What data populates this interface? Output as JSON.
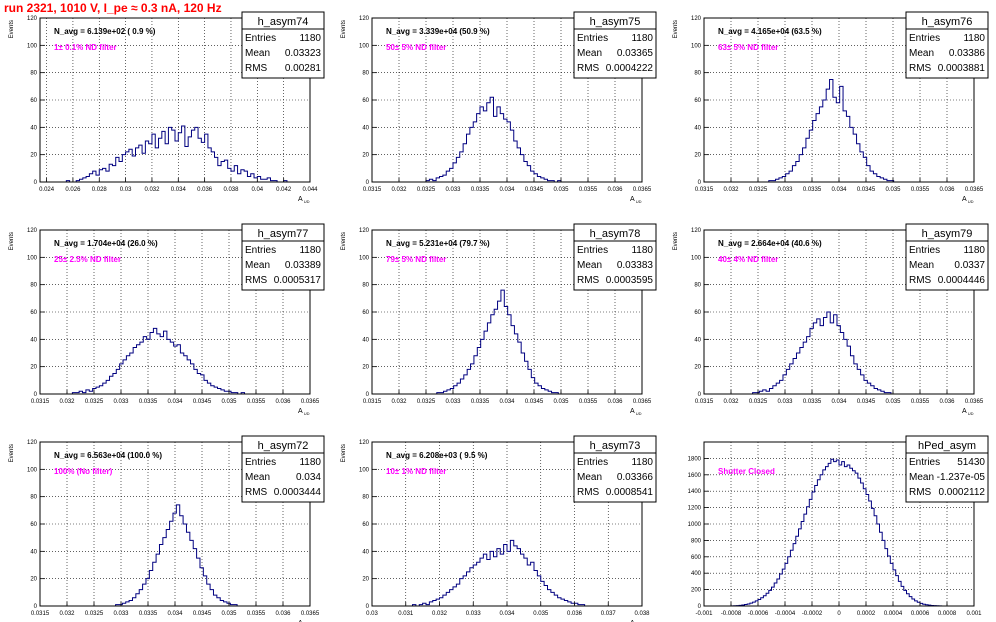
{
  "page_title": "run 2321,  1010 V, I_pe ≈ 0.3 nA, 120 Hz",
  "chart_data": [
    {
      "id": "h_asym74",
      "type": "histogram",
      "title": "h_asym74",
      "stats": {
        "Entries": "1180",
        "Mean": "0.03323",
        "RMS": "0.00281"
      },
      "navg": "N_avg = 6.139e+02 ( 0.9 %)",
      "filter": "1± 0.1% ND filter",
      "ylabel": "Events",
      "xlabel": "A_UD",
      "xlim": [
        0.0235,
        0.044
      ],
      "ylim": [
        0,
        120
      ],
      "xticks": [
        {
          "v": 0.024,
          "l": "0.024"
        },
        {
          "v": 0.026,
          "l": "0.026"
        },
        {
          "v": 0.028,
          "l": "0.028"
        },
        {
          "v": 0.03,
          "l": "0.03"
        },
        {
          "v": 0.032,
          "l": "0.032"
        },
        {
          "v": 0.034,
          "l": "0.034"
        },
        {
          "v": 0.036,
          "l": "0.036"
        },
        {
          "v": 0.038,
          "l": "0.038"
        },
        {
          "v": 0.04,
          "l": "0.04"
        },
        {
          "v": 0.042,
          "l": "0.042"
        },
        {
          "v": 0.044,
          "l": "0.044"
        }
      ],
      "yticks": [
        0,
        20,
        40,
        60,
        80,
        100,
        120
      ],
      "bin_start": 0.0255,
      "bin_width": 0.00025,
      "counts": [
        1,
        0,
        0,
        1,
        2,
        3,
        4,
        6,
        8,
        5,
        9,
        10,
        8,
        13,
        12,
        18,
        15,
        20,
        22,
        24,
        19,
        25,
        27,
        21,
        30,
        28,
        35,
        25,
        32,
        37,
        28,
        40,
        38,
        30,
        36,
        41,
        26,
        33,
        38,
        40,
        32,
        29,
        35,
        25,
        22,
        18,
        12,
        15,
        16,
        10,
        8,
        12,
        6,
        9,
        8,
        4,
        6,
        3,
        4,
        2,
        2,
        3,
        1,
        1,
        0,
        0,
        1
      ]
    },
    {
      "id": "h_asym75",
      "type": "histogram",
      "title": "h_asym75",
      "stats": {
        "Entries": "1180",
        "Mean": "0.03365",
        "RMS": "0.0004222"
      },
      "navg": "N_avg = 3.339e+04 (50.9 %)",
      "filter": "50± 5% ND filter",
      "ylabel": "Events",
      "xlabel": "A_UD",
      "xlim": [
        0.0315,
        0.0365
      ],
      "ylim": [
        0,
        120
      ],
      "xticks": [
        {
          "v": 0.0315,
          "l": "0.0315"
        },
        {
          "v": 0.032,
          "l": "0.032"
        },
        {
          "v": 0.0325,
          "l": "0.0325"
        },
        {
          "v": 0.033,
          "l": "0.033"
        },
        {
          "v": 0.0335,
          "l": "0.0335"
        },
        {
          "v": 0.034,
          "l": "0.034"
        },
        {
          "v": 0.0345,
          "l": "0.0345"
        },
        {
          "v": 0.035,
          "l": "0.035"
        },
        {
          "v": 0.0355,
          "l": "0.0355"
        },
        {
          "v": 0.036,
          "l": "0.036"
        },
        {
          "v": 0.0365,
          "l": "0.0365"
        }
      ],
      "yticks": [
        0,
        20,
        40,
        60,
        80,
        100,
        120
      ],
      "bin_start": 0.0325,
      "bin_width": 6.25e-05,
      "counts": [
        1,
        2,
        1,
        3,
        4,
        5,
        8,
        10,
        14,
        18,
        22,
        28,
        35,
        40,
        44,
        50,
        55,
        52,
        58,
        62,
        48,
        55,
        50,
        46,
        44,
        38,
        30,
        25,
        20,
        15,
        12,
        8,
        6,
        4,
        3,
        2,
        1,
        1,
        0,
        1
      ]
    },
    {
      "id": "h_asym76",
      "type": "histogram",
      "title": "h_asym76",
      "stats": {
        "Entries": "1180",
        "Mean": "0.03386",
        "RMS": "0.0003881"
      },
      "navg": "N_avg = 4.165e+04 (63.5 %)",
      "filter": "63± 5% ND filter",
      "ylabel": "Events",
      "xlabel": "A_UD",
      "xlim": [
        0.0315,
        0.0365
      ],
      "ylim": [
        0,
        120
      ],
      "xticks": [
        {
          "v": 0.0315,
          "l": "0.0315"
        },
        {
          "v": 0.032,
          "l": "0.032"
        },
        {
          "v": 0.0325,
          "l": "0.0325"
        },
        {
          "v": 0.033,
          "l": "0.033"
        },
        {
          "v": 0.0335,
          "l": "0.0335"
        },
        {
          "v": 0.034,
          "l": "0.034"
        },
        {
          "v": 0.0345,
          "l": "0.0345"
        },
        {
          "v": 0.035,
          "l": "0.035"
        },
        {
          "v": 0.0355,
          "l": "0.0355"
        },
        {
          "v": 0.036,
          "l": "0.036"
        },
        {
          "v": 0.0365,
          "l": "0.0365"
        }
      ],
      "yticks": [
        0,
        20,
        40,
        60,
        80,
        100,
        120
      ],
      "bin_start": 0.0327,
      "bin_width": 6.25e-05,
      "counts": [
        1,
        1,
        2,
        3,
        4,
        6,
        8,
        12,
        15,
        20,
        25,
        32,
        38,
        45,
        50,
        55,
        60,
        68,
        75,
        62,
        58,
        70,
        52,
        48,
        40,
        35,
        28,
        22,
        18,
        12,
        8,
        6,
        4,
        3,
        2,
        1,
        1
      ]
    },
    {
      "id": "h_asym77",
      "type": "histogram",
      "title": "h_asym77",
      "stats": {
        "Entries": "1180",
        "Mean": "0.03389",
        "RMS": "0.0005317"
      },
      "navg": "N_avg = 1.704e+04 (26.0 %)",
      "filter": "25± 2.5% ND filter",
      "ylabel": "Events",
      "xlabel": "A_UD",
      "xlim": [
        0.0315,
        0.0365
      ],
      "ylim": [
        0,
        120
      ],
      "xticks": [
        {
          "v": 0.0315,
          "l": "0.0315"
        },
        {
          "v": 0.032,
          "l": "0.032"
        },
        {
          "v": 0.0325,
          "l": "0.0325"
        },
        {
          "v": 0.033,
          "l": "0.033"
        },
        {
          "v": 0.0335,
          "l": "0.0335"
        },
        {
          "v": 0.034,
          "l": "0.034"
        },
        {
          "v": 0.0345,
          "l": "0.0345"
        },
        {
          "v": 0.035,
          "l": "0.035"
        },
        {
          "v": 0.0355,
          "l": "0.0355"
        },
        {
          "v": 0.036,
          "l": "0.036"
        },
        {
          "v": 0.0365,
          "l": "0.0365"
        }
      ],
      "yticks": [
        0,
        20,
        40,
        60,
        80,
        100,
        120
      ],
      "bin_start": 0.0321,
      "bin_width": 6.25e-05,
      "counts": [
        1,
        1,
        2,
        1,
        3,
        2,
        4,
        5,
        6,
        8,
        10,
        13,
        15,
        18,
        22,
        25,
        28,
        30,
        34,
        36,
        38,
        42,
        40,
        45,
        48,
        44,
        42,
        46,
        40,
        38,
        35,
        36,
        30,
        28,
        25,
        22,
        18,
        15,
        14,
        10,
        8,
        6,
        5,
        4,
        3,
        2,
        2,
        1,
        1,
        0,
        1
      ]
    },
    {
      "id": "h_asym78",
      "type": "histogram",
      "title": "h_asym78",
      "stats": {
        "Entries": "1180",
        "Mean": "0.03383",
        "RMS": "0.0003595"
      },
      "navg": "N_avg = 5.231e+04 (79.7 %)",
      "filter": "79± 5% ND filter",
      "ylabel": "Events",
      "xlabel": "A_UD",
      "xlim": [
        0.0315,
        0.0365
      ],
      "ylim": [
        0,
        120
      ],
      "xticks": [
        {
          "v": 0.0315,
          "l": "0.0315"
        },
        {
          "v": 0.032,
          "l": "0.032"
        },
        {
          "v": 0.0325,
          "l": "0.0325"
        },
        {
          "v": 0.033,
          "l": "0.033"
        },
        {
          "v": 0.0335,
          "l": "0.0335"
        },
        {
          "v": 0.034,
          "l": "0.034"
        },
        {
          "v": 0.0345,
          "l": "0.0345"
        },
        {
          "v": 0.035,
          "l": "0.035"
        },
        {
          "v": 0.0355,
          "l": "0.0355"
        },
        {
          "v": 0.036,
          "l": "0.036"
        },
        {
          "v": 0.0365,
          "l": "0.0365"
        }
      ],
      "yticks": [
        0,
        20,
        40,
        60,
        80,
        100,
        120
      ],
      "bin_start": 0.0327,
      "bin_width": 6.25e-05,
      "counts": [
        1,
        1,
        2,
        3,
        4,
        6,
        8,
        11,
        14,
        18,
        22,
        28,
        34,
        40,
        46,
        52,
        58,
        62,
        68,
        76,
        64,
        58,
        50,
        44,
        38,
        30,
        24,
        18,
        12,
        8,
        6,
        4,
        3,
        2,
        1,
        1
      ]
    },
    {
      "id": "h_asym79",
      "type": "histogram",
      "title": "h_asym79",
      "stats": {
        "Entries": "1180",
        "Mean": "0.0337",
        "RMS": "0.0004446"
      },
      "navg": "N_avg = 2.664e+04 (40.6 %)",
      "filter": "40± 4% ND filter",
      "ylabel": "Events",
      "xlabel": "A_UD",
      "xlim": [
        0.0315,
        0.0365
      ],
      "ylim": [
        0,
        120
      ],
      "xticks": [
        {
          "v": 0.0315,
          "l": "0.0315"
        },
        {
          "v": 0.032,
          "l": "0.032"
        },
        {
          "v": 0.0325,
          "l": "0.0325"
        },
        {
          "v": 0.033,
          "l": "0.033"
        },
        {
          "v": 0.0335,
          "l": "0.0335"
        },
        {
          "v": 0.034,
          "l": "0.034"
        },
        {
          "v": 0.0345,
          "l": "0.0345"
        },
        {
          "v": 0.035,
          "l": "0.035"
        },
        {
          "v": 0.0355,
          "l": "0.0355"
        },
        {
          "v": 0.036,
          "l": "0.036"
        },
        {
          "v": 0.0365,
          "l": "0.0365"
        }
      ],
      "yticks": [
        0,
        20,
        40,
        60,
        80,
        100,
        120
      ],
      "bin_start": 0.0324,
      "bin_width": 6.25e-05,
      "counts": [
        1,
        1,
        2,
        3,
        2,
        4,
        6,
        8,
        10,
        14,
        18,
        22,
        26,
        30,
        34,
        38,
        42,
        48,
        52,
        55,
        50,
        56,
        60,
        52,
        58,
        50,
        45,
        40,
        35,
        28,
        22,
        18,
        14,
        10,
        8,
        6,
        4,
        3,
        2,
        1,
        1
      ]
    },
    {
      "id": "h_asym72",
      "type": "histogram",
      "title": "h_asym72",
      "stats": {
        "Entries": "1180",
        "Mean": "0.034",
        "RMS": "0.0003444"
      },
      "navg": "N_avg = 6.563e+04 (100.0 %)",
      "filter": "100% (No filter)",
      "ylabel": "Events",
      "xlabel": "A_UD",
      "xlim": [
        0.0315,
        0.0365
      ],
      "ylim": [
        0,
        120
      ],
      "xticks": [
        {
          "v": 0.0315,
          "l": "0.0315"
        },
        {
          "v": 0.032,
          "l": "0.032"
        },
        {
          "v": 0.0325,
          "l": "0.0325"
        },
        {
          "v": 0.033,
          "l": "0.033"
        },
        {
          "v": 0.0335,
          "l": "0.0335"
        },
        {
          "v": 0.034,
          "l": "0.034"
        },
        {
          "v": 0.0345,
          "l": "0.0345"
        },
        {
          "v": 0.035,
          "l": "0.035"
        },
        {
          "v": 0.0355,
          "l": "0.0355"
        },
        {
          "v": 0.036,
          "l": "0.036"
        },
        {
          "v": 0.0365,
          "l": "0.0365"
        }
      ],
      "yticks": [
        0,
        20,
        40,
        60,
        80,
        100,
        120
      ],
      "bin_start": 0.0329,
      "bin_width": 6.25e-05,
      "counts": [
        1,
        1,
        2,
        3,
        4,
        6,
        9,
        12,
        16,
        20,
        26,
        32,
        38,
        45,
        50,
        56,
        62,
        68,
        74,
        66,
        60,
        54,
        48,
        42,
        35,
        28,
        22,
        16,
        12,
        8,
        6,
        4,
        3,
        2,
        1,
        1
      ]
    },
    {
      "id": "h_asym73",
      "type": "histogram",
      "title": "h_asym73",
      "stats": {
        "Entries": "1180",
        "Mean": "0.03366",
        "RMS": "0.0008541"
      },
      "navg": "N_avg = 6.208e+03 ( 9.5 %)",
      "filter": "10± 1% ND filter",
      "ylabel": "Events",
      "xlabel": "A_UD",
      "xlim": [
        0.03,
        0.038
      ],
      "ylim": [
        0,
        120
      ],
      "xticks": [
        {
          "v": 0.03,
          "l": "0.03"
        },
        {
          "v": 0.031,
          "l": "0.031"
        },
        {
          "v": 0.032,
          "l": "0.032"
        },
        {
          "v": 0.033,
          "l": "0.033"
        },
        {
          "v": 0.034,
          "l": "0.034"
        },
        {
          "v": 0.035,
          "l": "0.035"
        },
        {
          "v": 0.036,
          "l": "0.036"
        },
        {
          "v": 0.037,
          "l": "0.037"
        },
        {
          "v": 0.038,
          "l": "0.038"
        }
      ],
      "yticks": [
        0,
        20,
        40,
        60,
        80,
        100,
        120
      ],
      "bin_start": 0.0312,
      "bin_width": 0.0001,
      "counts": [
        1,
        0,
        1,
        2,
        1,
        3,
        4,
        5,
        6,
        8,
        10,
        12,
        14,
        16,
        20,
        22,
        25,
        28,
        30,
        32,
        35,
        38,
        34,
        40,
        36,
        42,
        38,
        45,
        40,
        48,
        44,
        42,
        38,
        35,
        30,
        32,
        26,
        22,
        18,
        15,
        12,
        10,
        8,
        6,
        5,
        4,
        3,
        2,
        2,
        1,
        1
      ]
    },
    {
      "id": "hPed_asym",
      "type": "histogram",
      "title": "hPed_asym",
      "stats": {
        "Entries": "51430",
        "Mean": "-1.237e-05",
        "RMS": "0.0002112"
      },
      "navg": "",
      "filter": "Shutter Closed",
      "ylabel": "",
      "xlabel": "",
      "xlim": [
        -0.001,
        0.001
      ],
      "ylim": [
        0,
        2000
      ],
      "xticks": [
        {
          "v": -0.001,
          "l": "-0.001"
        },
        {
          "v": -0.0008,
          "l": "-0.0008"
        },
        {
          "v": -0.0006,
          "l": "-0.0006"
        },
        {
          "v": -0.0004,
          "l": "-0.0004"
        },
        {
          "v": -0.0002,
          "l": "-0.0002"
        },
        {
          "v": 0,
          "l": "0"
        },
        {
          "v": 0.0002,
          "l": "0.0002"
        },
        {
          "v": 0.0004,
          "l": "0.0004"
        },
        {
          "v": 0.0006,
          "l": "0.0006"
        },
        {
          "v": 0.0008,
          "l": "0.0008"
        },
        {
          "v": 0.001,
          "l": "0.001"
        }
      ],
      "yticks": [
        0,
        200,
        400,
        600,
        800,
        1000,
        1200,
        1400,
        1600,
        1800
      ],
      "bin_start": -0.0008,
      "bin_width": 2e-05,
      "counts": [
        2,
        3,
        5,
        8,
        12,
        18,
        25,
        35,
        48,
        62,
        80,
        100,
        125,
        155,
        190,
        230,
        280,
        330,
        390,
        450,
        520,
        600,
        680,
        760,
        850,
        940,
        1030,
        1120,
        1210,
        1300,
        1390,
        1470,
        1540,
        1600,
        1660,
        1700,
        1740,
        1790,
        1760,
        1780,
        1720,
        1760,
        1700,
        1720,
        1680,
        1650,
        1620,
        1560,
        1500,
        1430,
        1360,
        1280,
        1190,
        1100,
        1000,
        900,
        800,
        700,
        610,
        520,
        440,
        370,
        300,
        240,
        190,
        150,
        115,
        85,
        62,
        45,
        32,
        22,
        15,
        10,
        6,
        4,
        3,
        2
      ]
    }
  ]
}
